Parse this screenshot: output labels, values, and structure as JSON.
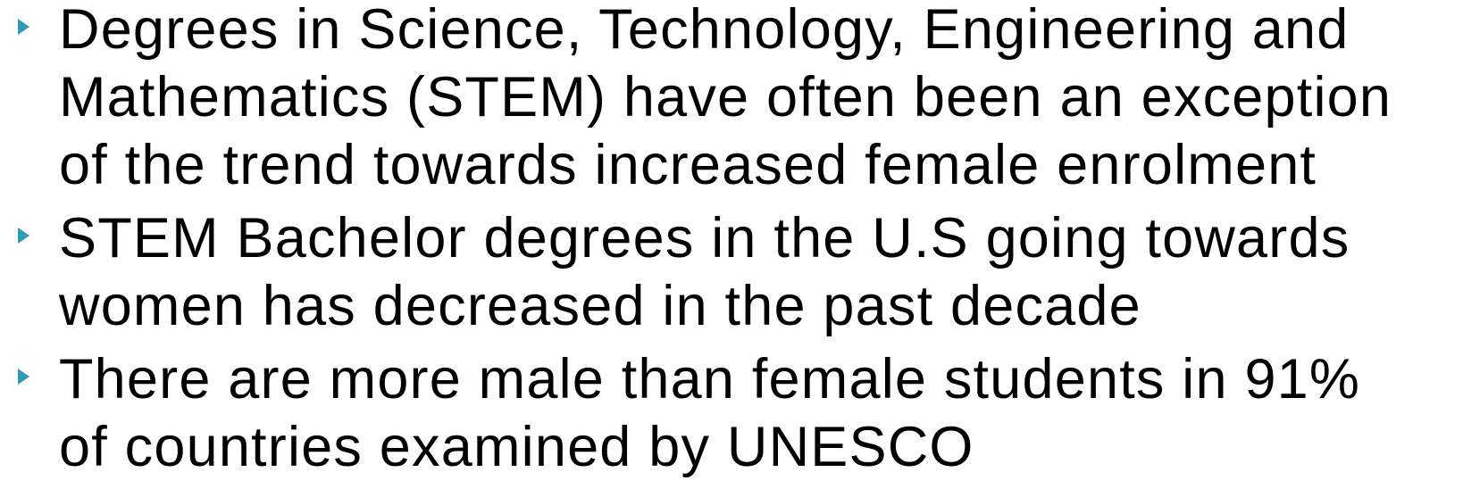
{
  "bullets": [
    [
      "Degrees in Science, Technology, Engineering and",
      "Mathematics (STEM) have often been an exception",
      "of the trend towards increased female enrolment"
    ],
    [
      "STEM Bachelor degrees in the U.S going towards",
      "women has decreased in the past decade"
    ],
    [
      "There are more male than female students in 91%",
      "of countries examined by UNESCO"
    ]
  ]
}
